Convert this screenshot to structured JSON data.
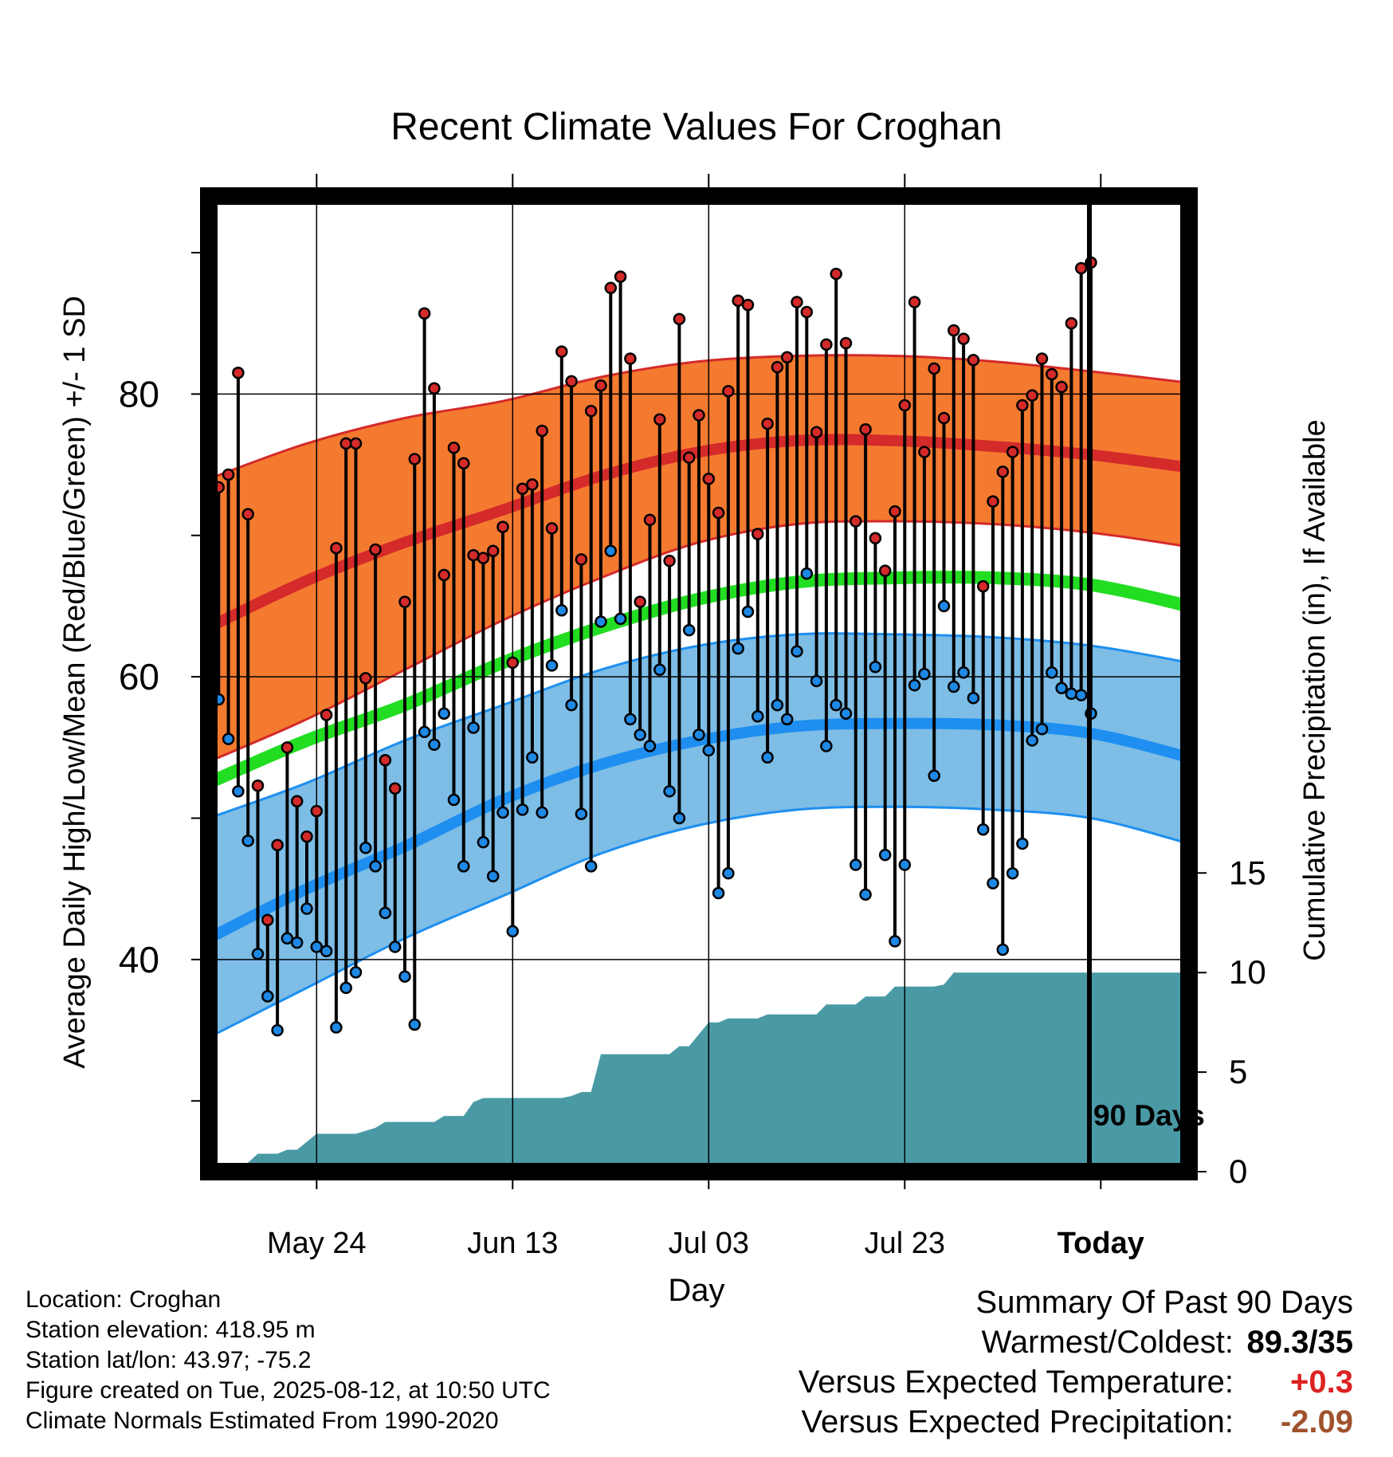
{
  "chart_data": {
    "type": "line",
    "title": "Recent Climate Values For Croghan",
    "xlabel": "Day",
    "ylabel": "Average Daily High/Low/Mean (Red/Blue/Green) +/- 1 SD",
    "y2label": "Cumulative Precipitation (in), If Available",
    "x_tick_labels": [
      "May 24",
      "Jun 13",
      "Jul 03",
      "Jul 23",
      "Today"
    ],
    "y_ticks": [
      "40",
      "60",
      "80"
    ],
    "y2_ticks": [
      "0",
      "5",
      "10",
      "15"
    ],
    "ylim": [
      25,
      94
    ],
    "y2lim": [
      0,
      49
    ],
    "xlim": [
      "2025-05-13",
      "2025-08-21"
    ],
    "today": "2025-08-12",
    "today_label": "90 Days",
    "colors": {
      "high_band": "#f47a30",
      "high_line": "#d42a2a",
      "low_band": "#7dbde6",
      "low_line": "#1e8ff0",
      "mean_line": "#22dd22",
      "precip": "#4a9aa6",
      "high_dot": "#d42a2a",
      "low_dot": "#1e88e5",
      "warm_value": "#dd2222",
      "precip_value": "#a0522d"
    },
    "normals": {
      "dates": [
        "2025-05-13",
        "2025-05-23",
        "2025-06-02",
        "2025-06-12",
        "2025-06-22",
        "2025-07-02",
        "2025-07-12",
        "2025-07-22",
        "2025-08-01",
        "2025-08-11",
        "2025-08-21"
      ],
      "high_mean": [
        63.5,
        66.8,
        69.5,
        71.8,
        74.2,
        75.9,
        76.7,
        76.7,
        76.3,
        75.7,
        74.8
      ],
      "high_upper": [
        74.0,
        76.5,
        78.3,
        79.5,
        81.2,
        82.3,
        82.7,
        82.7,
        82.3,
        81.6,
        80.8
      ],
      "high_lower": [
        54.0,
        57.0,
        60.5,
        64.0,
        67.0,
        69.5,
        70.8,
        71.0,
        70.8,
        70.2,
        69.2
      ],
      "mean": [
        52.5,
        55.5,
        58.0,
        61.0,
        63.5,
        65.5,
        66.7,
        67.0,
        67.0,
        66.5,
        65.0
      ],
      "low_mean": [
        41.5,
        45.0,
        48.0,
        51.3,
        53.8,
        55.5,
        56.5,
        56.7,
        56.6,
        56.0,
        54.3
      ],
      "low_upper": [
        50.0,
        52.5,
        55.5,
        58.0,
        60.5,
        62.2,
        63.0,
        63.0,
        62.8,
        62.2,
        61.0
      ],
      "low_lower": [
        34.5,
        38.0,
        41.5,
        44.5,
        47.5,
        49.5,
        50.6,
        50.8,
        50.6,
        50.0,
        48.2
      ]
    },
    "daily_dates_start": "2025-05-14",
    "daily_high": [
      73.4,
      74.3,
      81.5,
      71.5,
      52.3,
      42.8,
      48.1,
      55.0,
      51.2,
      48.7,
      50.5,
      57.3,
      69.1,
      76.5,
      76.5,
      59.9,
      69.0,
      54.1,
      52.1,
      65.3,
      75.4,
      85.7,
      80.4,
      67.2,
      76.2,
      75.1,
      68.6,
      68.4,
      68.9,
      70.6,
      61.0,
      73.3,
      73.6,
      77.4,
      70.5,
      83.0,
      80.9,
      68.3,
      78.8,
      80.6,
      87.5,
      88.3,
      82.5,
      65.3,
      71.1,
      78.2,
      68.2,
      85.3,
      75.5,
      78.5,
      74.0,
      71.6,
      80.2,
      86.6,
      86.3,
      70.1,
      77.9,
      81.9,
      82.6,
      86.5,
      85.8,
      77.3,
      83.5,
      88.5,
      83.6,
      71.0,
      77.5,
      69.8,
      67.5,
      71.7,
      79.2,
      86.5,
      75.9,
      81.8,
      78.3,
      84.5,
      83.9,
      82.4,
      66.4,
      72.4,
      74.5,
      75.9,
      79.2,
      79.9,
      82.5,
      81.4,
      80.5,
      85.0,
      88.9,
      89.3
    ],
    "daily_low": [
      58.4,
      55.6,
      51.9,
      48.4,
      40.4,
      37.4,
      35.0,
      41.5,
      41.2,
      43.6,
      40.9,
      40.6,
      35.2,
      38.0,
      39.1,
      47.9,
      46.6,
      43.3,
      40.9,
      38.8,
      35.4,
      56.1,
      55.2,
      57.4,
      51.3,
      46.6,
      56.4,
      48.3,
      45.9,
      50.4,
      42.0,
      50.6,
      54.3,
      50.4,
      60.8,
      64.7,
      58.0,
      50.3,
      46.6,
      63.9,
      68.9,
      64.1,
      57.0,
      55.9,
      55.1,
      60.5,
      51.9,
      50.0,
      63.3,
      55.9,
      54.8,
      44.7,
      46.1,
      62.0,
      64.6,
      57.2,
      54.3,
      58.0,
      57.0,
      61.8,
      67.3,
      59.7,
      55.1,
      58.0,
      57.4,
      46.7,
      44.6,
      60.7,
      47.4,
      41.3,
      46.7,
      59.4,
      60.2,
      53.0,
      65.0,
      59.3,
      60.3,
      58.5,
      49.2,
      45.4,
      40.7,
      46.1,
      48.2,
      55.5,
      56.3,
      60.3,
      59.2,
      58.8,
      58.7,
      57.4
    ],
    "precip_cumulative": [
      [
        "2025-05-13",
        0
      ],
      [
        "2025-05-16",
        0
      ],
      [
        "2025-05-18",
        0.9
      ],
      [
        "2025-05-20",
        0.9
      ],
      [
        "2025-05-21",
        1.1
      ],
      [
        "2025-05-22",
        1.1
      ],
      [
        "2025-05-24",
        1.9
      ],
      [
        "2025-05-28",
        1.9
      ],
      [
        "2025-05-30",
        2.2
      ],
      [
        "2025-05-31",
        2.5
      ],
      [
        "2025-06-05",
        2.5
      ],
      [
        "2025-06-06",
        2.8
      ],
      [
        "2025-06-08",
        2.8
      ],
      [
        "2025-06-09",
        3.5
      ],
      [
        "2025-06-10",
        3.7
      ],
      [
        "2025-06-18",
        3.7
      ],
      [
        "2025-06-19",
        3.8
      ],
      [
        "2025-06-20",
        4.0
      ],
      [
        "2025-06-21",
        4.0
      ],
      [
        "2025-06-22",
        5.9
      ],
      [
        "2025-06-23",
        5.9
      ],
      [
        "2025-06-29",
        5.9
      ],
      [
        "2025-06-30",
        6.3
      ],
      [
        "2025-07-01",
        6.3
      ],
      [
        "2025-07-02",
        6.9
      ],
      [
        "2025-07-03",
        7.5
      ],
      [
        "2025-07-04",
        7.5
      ],
      [
        "2025-07-05",
        7.7
      ],
      [
        "2025-07-06",
        7.7
      ],
      [
        "2025-07-08",
        7.7
      ],
      [
        "2025-07-09",
        7.9
      ],
      [
        "2025-07-14",
        7.9
      ],
      [
        "2025-07-15",
        8.4
      ],
      [
        "2025-07-18",
        8.4
      ],
      [
        "2025-07-19",
        8.8
      ],
      [
        "2025-07-21",
        8.8
      ],
      [
        "2025-07-22",
        9.3
      ],
      [
        "2025-07-26",
        9.3
      ],
      [
        "2025-07-27",
        9.4
      ],
      [
        "2025-07-28",
        10.0
      ],
      [
        "2025-08-21",
        10.0
      ]
    ]
  },
  "footer": {
    "location": "Location: Croghan",
    "elevation": "Station elevation: 418.95 m",
    "latlon": "Station lat/lon: 43.97; -75.2",
    "created": "Figure created on Tue, 2025-08-12, at 10:50 UTC",
    "normals": "Climate Normals Estimated From 1990-2020"
  },
  "summary": {
    "title": "Summary Of Past 90 Days",
    "warmest_label": "Warmest/Coldest:",
    "warmest_value": "89.3/35",
    "temp_label": "Versus Expected Temperature:",
    "temp_value": "+0.3",
    "precip_label": "Versus Expected Precipitation:",
    "precip_value": "-2.09"
  }
}
